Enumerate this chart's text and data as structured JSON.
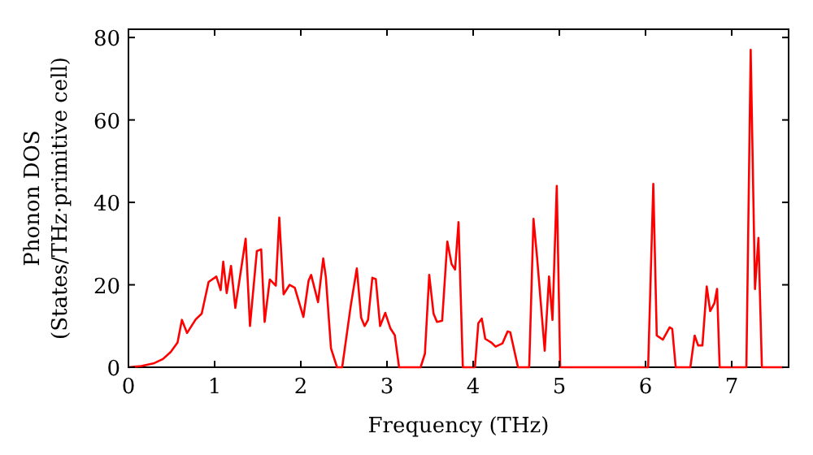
{
  "chart_data": {
    "type": "line",
    "xlabel": "Frequency (THz)",
    "ylabel": "Phonon DOS\n(States/THz·primitive cell)",
    "xlim": [
      0,
      7.66
    ],
    "ylim": [
      0,
      82
    ],
    "xticks": [
      0,
      1,
      2,
      3,
      4,
      5,
      6,
      7
    ],
    "yticks": [
      0,
      20,
      40,
      60,
      80
    ],
    "grid": false,
    "series": [
      {
        "color": "#ff0000",
        "x": [
          0,
          0.15,
          0.3,
          0.4,
          0.49,
          0.57,
          0.62,
          0.68,
          0.78,
          0.85,
          0.93,
          1.02,
          1.07,
          1.1,
          1.14,
          1.19,
          1.24,
          1.36,
          1.41,
          1.49,
          1.54,
          1.58,
          1.64,
          1.71,
          1.75,
          1.8,
          1.87,
          1.93,
          2.03,
          2.09,
          2.12,
          2.2,
          2.26,
          2.29,
          2.35,
          2.42,
          2.48,
          2.58,
          2.65,
          2.7,
          2.74,
          2.78,
          2.83,
          2.87,
          2.92,
          2.98,
          3.04,
          3.09,
          3.14,
          3.39,
          3.44,
          3.49,
          3.54,
          3.58,
          3.64,
          3.7,
          3.75,
          3.79,
          3.83,
          3.88,
          4.02,
          4.06,
          4.1,
          4.14,
          4.21,
          4.26,
          4.34,
          4.4,
          4.43,
          4.52,
          4.65,
          4.7,
          4.74,
          4.83,
          4.88,
          4.92,
          4.97,
          5.01,
          6.03,
          6.09,
          6.13,
          6.2,
          6.28,
          6.31,
          6.35,
          6.52,
          6.57,
          6.61,
          6.66,
          6.71,
          6.75,
          6.8,
          6.83,
          6.86,
          7.17,
          7.22,
          7.27,
          7.31,
          7.35,
          7.6
        ],
        "values": [
          0,
          0.3,
          1,
          2,
          3.7,
          6,
          11.5,
          8.3,
          11.6,
          13,
          20.7,
          22,
          18.7,
          25.6,
          18,
          24.6,
          14.4,
          31.2,
          10,
          28.2,
          28.6,
          11,
          21.3,
          19.8,
          36.3,
          17.7,
          20,
          19.3,
          12.2,
          21,
          22.4,
          15.8,
          26.4,
          22,
          4.6,
          0,
          0,
          15,
          24,
          12,
          10,
          11.5,
          21.7,
          21.4,
          10,
          13.2,
          9.4,
          7.8,
          0,
          0,
          3.3,
          22.4,
          13,
          11,
          11.3,
          30.5,
          25,
          23.7,
          35.2,
          0,
          0,
          10.7,
          11.8,
          6.9,
          6,
          5,
          5.8,
          8.7,
          8.5,
          0,
          0,
          36,
          27,
          4,
          22,
          11.5,
          44,
          0,
          0,
          44.5,
          7.7,
          6.7,
          9.7,
          9.3,
          0,
          0,
          7.7,
          5.3,
          5.3,
          19.6,
          13.6,
          15.6,
          19,
          0,
          0,
          77,
          19,
          31.4,
          0,
          0
        ]
      }
    ]
  }
}
